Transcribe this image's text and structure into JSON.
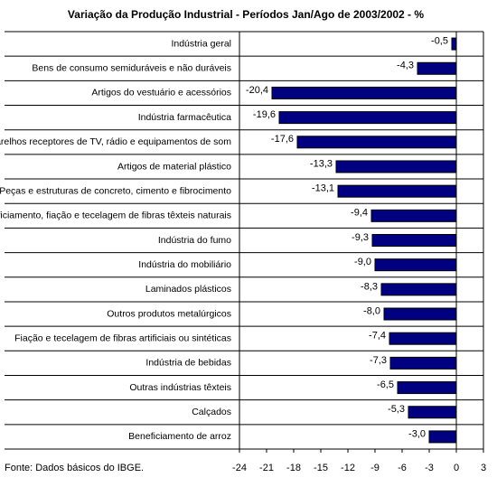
{
  "chart_data": {
    "type": "bar",
    "orientation": "horizontal",
    "title": "Variação da Produção Industrial - Períodos Jan/Ago de 2003/2002 - %",
    "categories": [
      "Indústria geral",
      "Bens de consumo semiduráveis e não duráveis",
      "Artigos do vestuário e acessórios",
      "Indústria farmacêutica",
      "Aparelhos receptores de TV, rádio e equipamentos de som",
      "Artigos de material plástico",
      "Peças e estruturas de concreto, cimento e fibrocimento",
      "Beneficiamento, fiação e tecelagem de fibras têxteis naturais",
      "Indústria do fumo",
      "Indústria do mobiliário",
      "Laminados plásticos",
      "Outros produtos metalúrgicos",
      "Fiação e tecelagem de fibras artificiais ou sintéticas",
      "Indústria de bebidas",
      "Outras indústrias têxteis",
      "Calçados",
      "Beneficiamento de arroz"
    ],
    "values": [
      -0.5,
      -4.3,
      -20.4,
      -19.6,
      -17.6,
      -13.3,
      -13.1,
      -9.4,
      -9.3,
      -9.0,
      -8.3,
      -8.0,
      -7.4,
      -7.3,
      -6.5,
      -5.3,
      -3.0
    ],
    "value_labels": [
      "-0,5",
      "-4,3",
      "-20,4",
      "-19,6",
      "-17,6",
      "-13,3",
      "-13,1",
      "-9,4",
      "-9,3",
      "-9,0",
      "-8,3",
      "-8,0",
      "-7,4",
      "-7,3",
      "-6,5",
      "-5,3",
      "-3,0"
    ],
    "color": "#000080",
    "xlim": [
      -24,
      3
    ],
    "xticks": [
      -24,
      -21,
      -18,
      -15,
      -12,
      -9,
      -6,
      -3,
      0,
      3
    ],
    "source": "Fonte: Dados básicos do IBGE."
  }
}
